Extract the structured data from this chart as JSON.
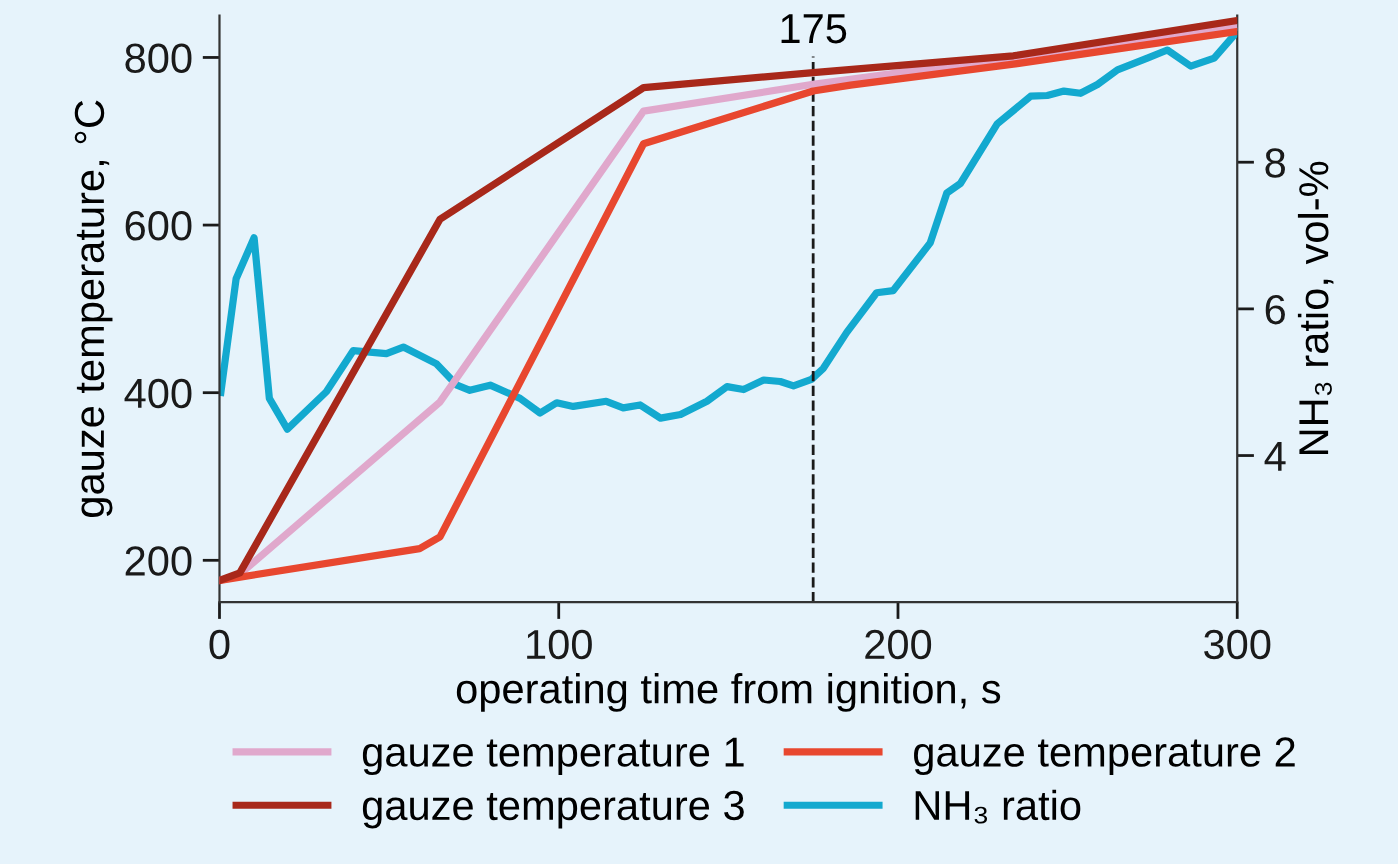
{
  "chart_data": {
    "type": "line",
    "xlabel": "operating time from ignition, s",
    "ylabel": "gauze temperature, °C",
    "y2label": "NH₃ ratio, vol-%",
    "xlim": [
      0,
      300
    ],
    "xticks": [
      0,
      100,
      200,
      300
    ],
    "ylim": [
      150,
      850
    ],
    "yticks": [
      200,
      400,
      600,
      800
    ],
    "y2lim": [
      2,
      10
    ],
    "y2ticks": [
      4,
      6,
      8
    ],
    "grid": false,
    "legend": "bottom",
    "marker": "none",
    "line_style": "solid",
    "ref_lines": [
      {
        "axis": "x",
        "value": 175,
        "label": "175",
        "line_style": "dashed",
        "color": "#1a1a1a"
      }
    ],
    "series": [
      {
        "name": "gauze temperature 1",
        "color": "#e0a8cc",
        "x": [
          0,
          5,
          65,
          125,
          175,
          300
        ],
        "values": [
          176,
          180,
          389,
          736,
          768,
          836
        ]
      },
      {
        "name": "gauze temperature 2",
        "color": "#e8472f",
        "x": [
          0,
          59,
          65,
          125,
          175,
          186,
          234,
          300
        ],
        "values": [
          176,
          214,
          228,
          697,
          760,
          767,
          792,
          831
        ]
      },
      {
        "name": "gauze temperature 3",
        "color": "#a8281a",
        "x": [
          0,
          6,
          65,
          125,
          175,
          234,
          300
        ],
        "values": [
          176,
          185,
          607,
          764,
          782,
          802,
          844
        ]
      },
      {
        "name": "NH₃ ratio",
        "color": "#13a9cf",
        "axis": "y2",
        "x": [
          0.4,
          4.9,
          10.2,
          14.7,
          20,
          31.5,
          39.4,
          49.2,
          54.2,
          64,
          70,
          73.8,
          79.8,
          88.6,
          94.5,
          99.4,
          104.3,
          114,
          119,
          124,
          130,
          135.9,
          143.7,
          149.6,
          154.5,
          160.4,
          165.3,
          169.2,
          174.5,
          178,
          184.9,
          193.7,
          198.6,
          209.5,
          214.4,
          218.4,
          229.2,
          239.1,
          244,
          248.9,
          253.8,
          258.8,
          264.7,
          273.5,
          279.4,
          286.3,
          293.2,
          300
        ],
        "values": [
          4.86,
          6.41,
          6.97,
          4.78,
          4.36,
          4.87,
          5.43,
          5.39,
          5.48,
          5.25,
          4.96,
          4.89,
          4.96,
          4.78,
          4.58,
          4.72,
          4.67,
          4.74,
          4.65,
          4.69,
          4.51,
          4.56,
          4.74,
          4.94,
          4.9,
          5.03,
          5.01,
          4.95,
          5.04,
          5.19,
          5.68,
          6.22,
          6.25,
          6.9,
          7.58,
          7.71,
          8.52,
          8.9,
          8.91,
          8.97,
          8.94,
          9.06,
          9.26,
          9.42,
          9.53,
          9.31,
          9.42,
          9.78
        ]
      }
    ]
  }
}
